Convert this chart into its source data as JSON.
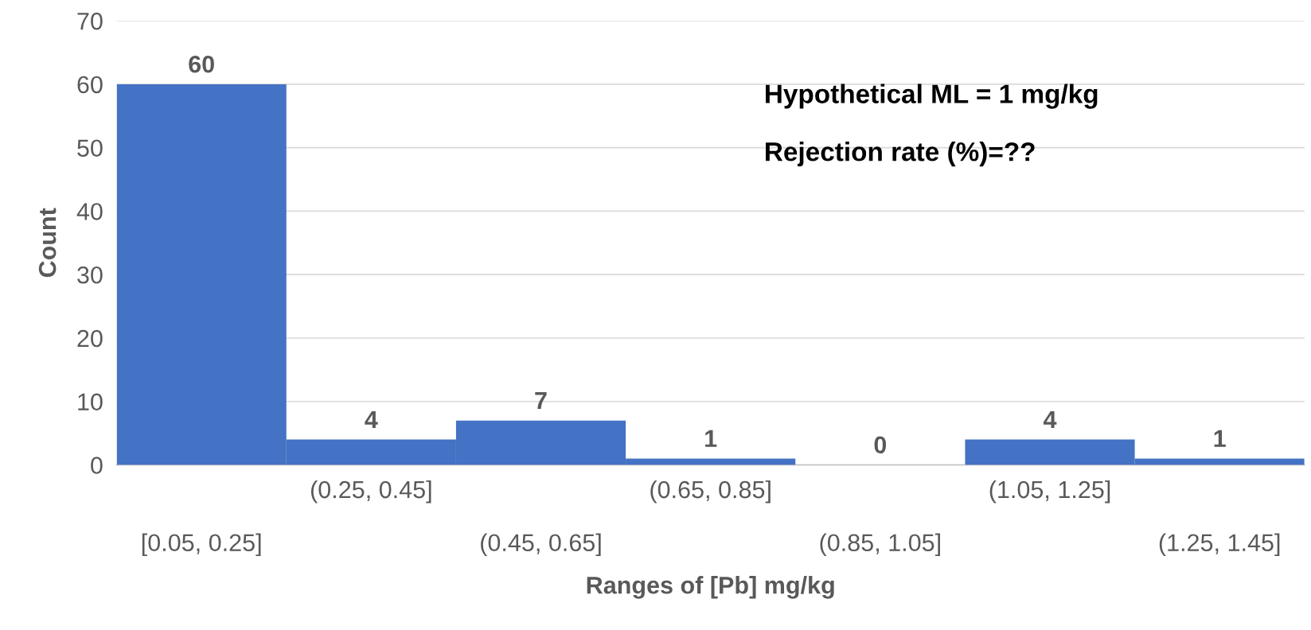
{
  "chart_data": {
    "type": "bar",
    "xlabel": "Ranges of [Pb] mg/kg",
    "ylabel": "Count",
    "categories": [
      "[0.05, 0.25]",
      "(0.25, 0.45]",
      "(0.45, 0.65]",
      "(0.65, 0.85]",
      "(0.85, 1.05]",
      "(1.05, 1.25]",
      "(1.25, 1.45]"
    ],
    "values": [
      60,
      4,
      7,
      1,
      0,
      4,
      1
    ],
    "color": "#4472c4",
    "ylim": [
      0,
      70
    ],
    "yticks": [
      0,
      10,
      20,
      30,
      40,
      50,
      60,
      70
    ],
    "grid": "y",
    "data_labels": true,
    "annotations": [
      "Hypothetical ML = 1 mg/kg",
      "Rejection rate (%)=??"
    ]
  }
}
